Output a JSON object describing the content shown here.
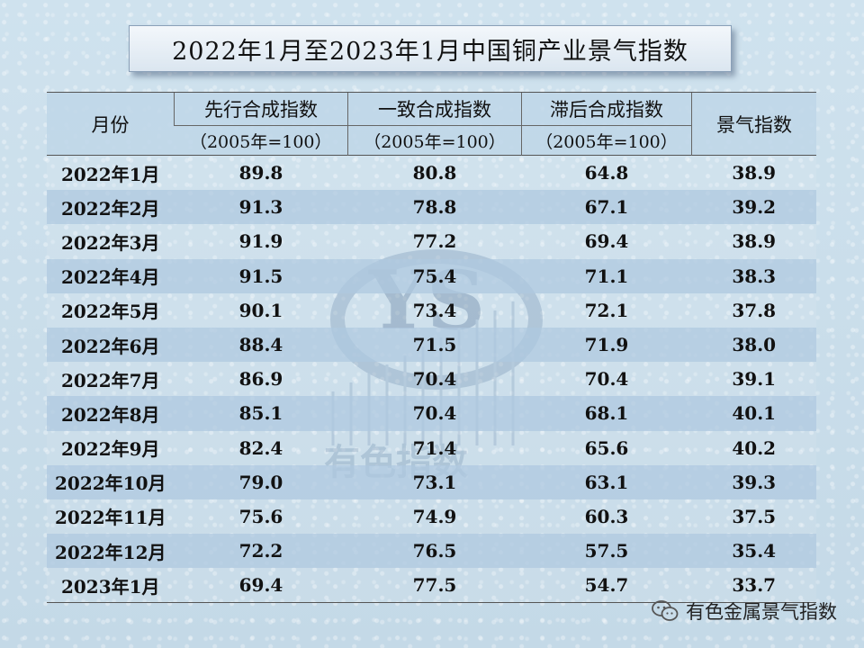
{
  "title": "2022年1月至2023年1月中国铜产业景气指数",
  "table": {
    "month_header": "月份",
    "columns": [
      {
        "name": "先行合成指数",
        "unit": "（2005年=100）"
      },
      {
        "name": "一致合成指数",
        "unit": "（2005年=100）"
      },
      {
        "name": "滞后合成指数",
        "unit": "（2005年=100）"
      }
    ],
    "index_header": "景气指数",
    "rows": [
      {
        "month": "2022年1月",
        "leading": "89.8",
        "coincident": "80.8",
        "lagging": "64.8",
        "index": "38.9"
      },
      {
        "month": "2022年2月",
        "leading": "91.3",
        "coincident": "78.8",
        "lagging": "67.1",
        "index": "39.2"
      },
      {
        "month": "2022年3月",
        "leading": "91.9",
        "coincident": "77.2",
        "lagging": "69.4",
        "index": "38.9"
      },
      {
        "month": "2022年4月",
        "leading": "91.5",
        "coincident": "75.4",
        "lagging": "71.1",
        "index": "38.3"
      },
      {
        "month": "2022年5月",
        "leading": "90.1",
        "coincident": "73.4",
        "lagging": "72.1",
        "index": "37.8"
      },
      {
        "month": "2022年6月",
        "leading": "88.4",
        "coincident": "71.5",
        "lagging": "71.9",
        "index": "38.0"
      },
      {
        "month": "2022年7月",
        "leading": "86.9",
        "coincident": "70.4",
        "lagging": "70.4",
        "index": "39.1"
      },
      {
        "month": "2022年8月",
        "leading": "85.1",
        "coincident": "70.4",
        "lagging": "68.1",
        "index": "40.1"
      },
      {
        "month": "2022年9月",
        "leading": "82.4",
        "coincident": "71.4",
        "lagging": "65.6",
        "index": "40.2"
      },
      {
        "month": "2022年10月",
        "leading": "79.0",
        "coincident": "73.1",
        "lagging": "63.1",
        "index": "39.3"
      },
      {
        "month": "2022年11月",
        "leading": "75.6",
        "coincident": "74.9",
        "lagging": "60.3",
        "index": "37.5"
      },
      {
        "month": "2022年12月",
        "leading": "72.2",
        "coincident": "76.5",
        "lagging": "57.5",
        "index": "35.4"
      },
      {
        "month": "2023年1月",
        "leading": "69.4",
        "coincident": "77.5",
        "lagging": "54.7",
        "index": "33.7"
      }
    ]
  },
  "watermark": {
    "logo_text": "YS",
    "caption": "有色指数"
  },
  "footer": {
    "icon": "wechat-icon",
    "text": "有色金属景气指数"
  }
}
